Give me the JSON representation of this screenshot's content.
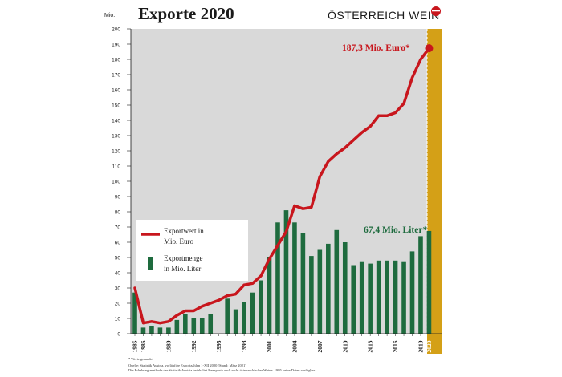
{
  "header": {
    "title": "Exporte 2020",
    "brand": "ÖSTERREICH WEIN",
    "unit_label": "Mio."
  },
  "colors": {
    "plot_bg": "#d9d9d9",
    "value_line": "#c8161d",
    "volume_bar": "#1e6b3e",
    "highlight_2020": "#d4a017",
    "axis_text": "#1a1a1a"
  },
  "chart_data": {
    "type": "bar",
    "title": "Exporte 2020",
    "ylabel": "Mio.",
    "ylim": [
      0,
      200
    ],
    "ytick_step": 10,
    "grid": false,
    "legend_position": "middle-left",
    "years": [
      1985,
      1986,
      1987,
      1988,
      1989,
      1990,
      1991,
      1992,
      1993,
      1994,
      1995,
      1996,
      1997,
      1998,
      1999,
      2000,
      2001,
      2002,
      2003,
      2004,
      2005,
      2006,
      2007,
      2008,
      2009,
      2010,
      2011,
      2012,
      2013,
      2014,
      2015,
      2016,
      2017,
      2018,
      2019,
      2020
    ],
    "xtick_labels": [
      "1985",
      "1986",
      "1989",
      "1992",
      "1995",
      "1998",
      "2001",
      "2004",
      "2007",
      "2010",
      "2013",
      "2016",
      "2019",
      "2020"
    ],
    "series": [
      {
        "name": "Exportwert in Mio. Euro",
        "kind": "line",
        "values": [
          30,
          7,
          8,
          7,
          8,
          12,
          15,
          15,
          18,
          20,
          22,
          25,
          26,
          32,
          33,
          38,
          49,
          58,
          67,
          84,
          82,
          83,
          103,
          113,
          118,
          122,
          127,
          132,
          136,
          143,
          143,
          145,
          151,
          168,
          180,
          187.3
        ]
      },
      {
        "name": "Exportmenge in Mio. Liter",
        "kind": "bar",
        "values": [
          27,
          4,
          5,
          4,
          4,
          9,
          13,
          10,
          10,
          13,
          null,
          23,
          16,
          21,
          27,
          35,
          50,
          73,
          81,
          73,
          66,
          51,
          55,
          59,
          68,
          60,
          45,
          47,
          46,
          48,
          48,
          48,
          47,
          54,
          64,
          67.4
        ]
      }
    ],
    "annotations": {
      "value_2020": "187,3 Mio. Euro*",
      "volume_2020": "67,4 Mio. Liter*"
    },
    "legend": {
      "line_label_1": "Exportwert in",
      "line_label_2": "Mio. Euro",
      "bar_label_1": "Exportmenge",
      "bar_label_2": "in Mio. Liter"
    }
  },
  "footnotes": [
    "* Werte gerundet",
    "Quelle: Statistik Austria, vorläufige Exportzahlen 1-XII 2020 (Stand: März 2021)",
    "Die Erhebungsmethode der Statistik Austria beinhaltet Reexporte auch nicht österreichischer Weine. 1995 keine Daten verfügbar"
  ]
}
